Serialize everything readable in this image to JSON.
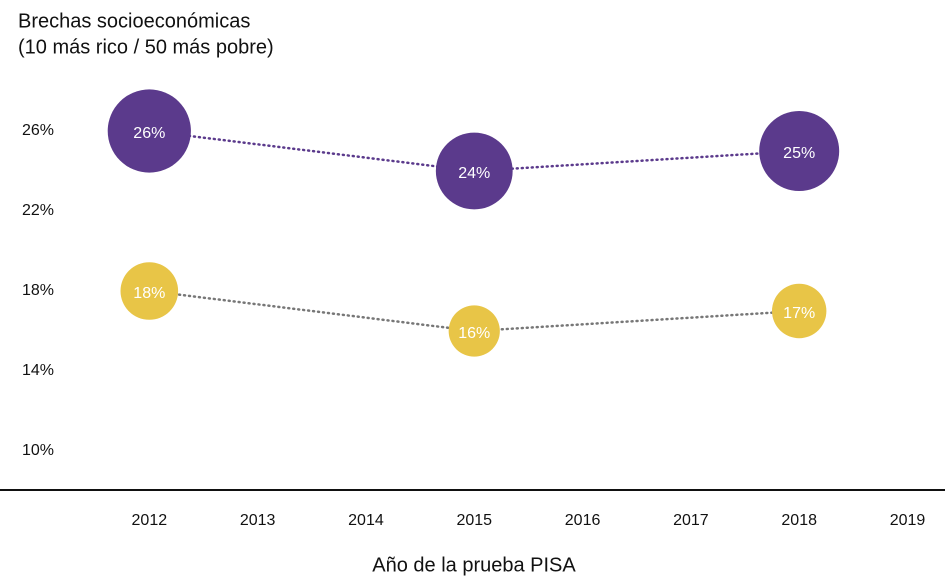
{
  "chart_data": {
    "type": "bubble-line",
    "title": "Brechas socioeconómicas",
    "subtitle": "(10 más rico / 50 más pobre)",
    "x_label": "Año de la prueba PISA",
    "x": [
      2012,
      2015,
      2018
    ],
    "xlim": [
      2011,
      2019.3
    ],
    "xticks": [
      2012,
      2013,
      2014,
      2015,
      2016,
      2017,
      2018,
      2019
    ],
    "ylim": [
      8,
      28
    ],
    "yticks": [
      {
        "value": 10,
        "label": "10%"
      },
      {
        "value": 14,
        "label": "14%"
      },
      {
        "value": 18,
        "label": "18%"
      },
      {
        "value": 22,
        "label": "22%"
      },
      {
        "value": 26,
        "label": "26%"
      }
    ],
    "series": [
      {
        "color": "#5b3a8c",
        "line_color": "#5b3a8c",
        "values": [
          26,
          24,
          25
        ],
        "value_labels": [
          "26%",
          "24%",
          "25%"
        ]
      },
      {
        "color": "#e8c547",
        "line_color": "#777777",
        "values": [
          18,
          16,
          17
        ],
        "value_labels": [
          "18%",
          "16%",
          "17%"
        ]
      }
    ]
  }
}
